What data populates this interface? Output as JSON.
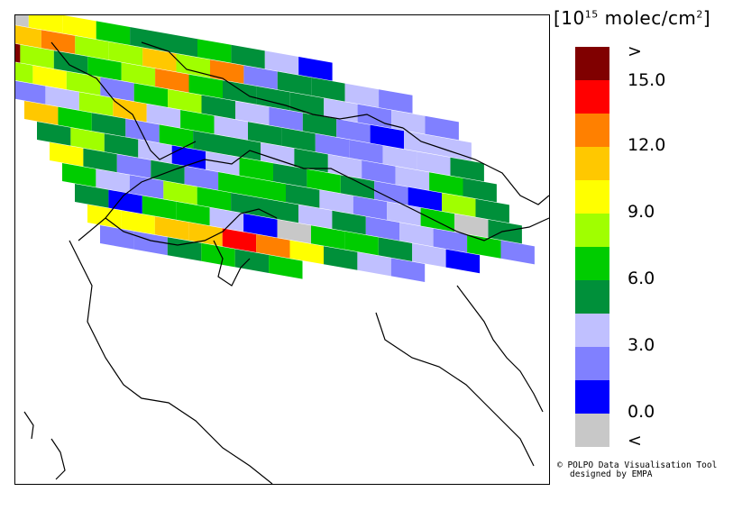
{
  "unit": {
    "prefix": "[10",
    "exponent": "15",
    "suffix": " molec/cm",
    "suffix_exp": "2",
    "close": "]"
  },
  "legend": {
    "colors": [
      "#800000",
      "#ff0000",
      "#ff8000",
      "#ffc800",
      "#ffff00",
      "#a0ff00",
      "#00cc00",
      "#00903a",
      "#c0c0ff",
      "#8080ff",
      "#0000ff",
      "#c8c8c8"
    ],
    "labels": [
      ">",
      "15.0",
      "12.0",
      "9.0",
      "6.0",
      "3.0",
      "0.0",
      "<"
    ]
  },
  "credit": {
    "line1": "© POLPO Data Visualisation Tool",
    "line2": "designed by EMPA"
  },
  "swath_rows": [
    [
      11,
      11,
      4,
      4,
      6,
      7,
      7,
      6,
      7,
      8,
      10
    ],
    [
      0,
      3,
      2,
      5,
      5,
      3,
      5,
      2,
      9,
      7,
      7,
      8,
      9
    ],
    [
      0,
      5,
      7,
      6,
      5,
      2,
      6,
      7,
      7,
      7,
      8,
      9,
      8,
      9
    ],
    [
      5,
      4,
      5,
      9,
      6,
      5,
      7,
      8,
      9,
      7,
      9,
      10,
      8,
      8
    ],
    [
      9,
      8,
      5,
      3,
      8,
      6,
      8,
      7,
      7,
      9,
      9,
      8,
      8,
      7
    ],
    [
      3,
      6,
      7,
      9,
      6,
      7,
      7,
      8,
      7,
      8,
      9,
      8,
      6,
      7
    ],
    [
      7,
      5,
      7,
      8,
      10,
      8,
      6,
      7,
      6,
      7,
      9,
      10,
      5,
      7
    ],
    [
      4,
      7,
      9,
      7,
      9,
      6,
      6,
      7,
      8,
      9,
      8,
      6,
      11,
      7
    ],
    [
      6,
      8,
      9,
      5,
      6,
      7,
      7,
      8,
      7,
      9,
      8,
      9,
      6,
      9
    ],
    [
      7,
      10,
      6,
      6,
      8,
      10,
      11,
      6,
      6,
      7,
      8,
      10
    ],
    [
      4,
      4,
      3,
      3,
      1,
      2,
      4,
      7,
      8,
      9
    ],
    [
      9,
      9,
      7,
      6,
      7,
      6
    ]
  ]
}
